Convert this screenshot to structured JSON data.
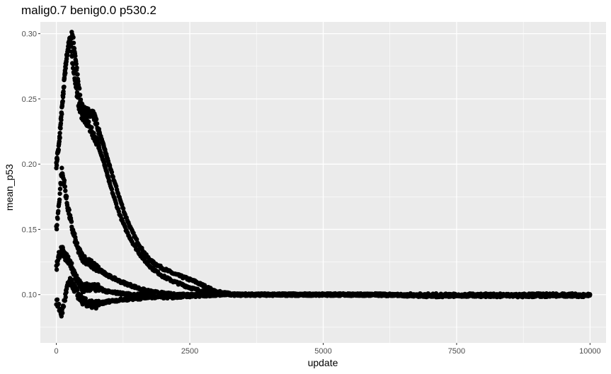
{
  "chart_data": {
    "type": "scatter",
    "title": "malig0.7 benig0.0 p530.2",
    "xlabel": "update",
    "ylabel": "mean_p53",
    "xlim": [
      -300,
      10300
    ],
    "ylim": [
      0.063,
      0.309
    ],
    "x_ticks": [
      0,
      2500,
      5000,
      7500,
      10000
    ],
    "x_tick_labels": [
      "0",
      "2500",
      "5000",
      "7500",
      "10000"
    ],
    "y_ticks": [
      0.1,
      0.15,
      0.2,
      0.25,
      0.3
    ],
    "y_tick_labels": [
      "0.10",
      "0.15",
      "0.20",
      "0.25",
      "0.30"
    ],
    "grid": true,
    "panel_color": "#ebebeb",
    "grid_color": "#ffffff",
    "point_color": "#000000",
    "series": [
      {
        "x": [
          0,
          50,
          100,
          150,
          200,
          250,
          300,
          350,
          400,
          450,
          500,
          600,
          700,
          800,
          900,
          1000,
          1100,
          1200,
          1300,
          1400,
          1500,
          1600,
          1700,
          1800,
          2000,
          2200,
          2400,
          2600,
          2800,
          3000,
          3500,
          4000,
          5000,
          6000,
          7000,
          8000,
          9000,
          10000
        ],
        "y": [
          0.2,
          0.215,
          0.24,
          0.265,
          0.285,
          0.295,
          0.3,
          0.285,
          0.265,
          0.25,
          0.241,
          0.24,
          0.238,
          0.225,
          0.212,
          0.198,
          0.185,
          0.172,
          0.16,
          0.15,
          0.142,
          0.135,
          0.129,
          0.125,
          0.12,
          0.116,
          0.113,
          0.11,
          0.106,
          0.102,
          0.1,
          0.1,
          0.1,
          0.1,
          0.099,
          0.099,
          0.1,
          0.099
        ]
      },
      {
        "x": [
          0,
          50,
          100,
          150,
          200,
          250,
          300,
          350,
          400,
          450,
          500,
          550,
          600,
          650,
          700,
          750,
          800,
          900,
          1000,
          1100,
          1200,
          1300,
          1400,
          1500,
          1600,
          1700,
          1800,
          1900,
          2000,
          2200,
          2400,
          2600,
          2800,
          3000,
          3500,
          4000,
          5000,
          6000,
          7000,
          8000,
          9000,
          10000
        ],
        "y": [
          0.2,
          0.215,
          0.24,
          0.265,
          0.285,
          0.295,
          0.28,
          0.265,
          0.25,
          0.24,
          0.236,
          0.233,
          0.23,
          0.226,
          0.222,
          0.218,
          0.213,
          0.2,
          0.185,
          0.172,
          0.16,
          0.15,
          0.142,
          0.135,
          0.129,
          0.124,
          0.12,
          0.117,
          0.114,
          0.11,
          0.107,
          0.104,
          0.102,
          0.101,
          0.1,
          0.1,
          0.1,
          0.1,
          0.1,
          0.1,
          0.1,
          0.1
        ]
      },
      {
        "x": [
          0,
          50,
          100,
          150,
          200,
          250,
          300,
          400,
          500,
          600,
          700,
          800,
          1000,
          1200,
          1400,
          1600,
          1800,
          2000,
          2200,
          2500,
          3000,
          3500,
          4000,
          5000,
          6000,
          7000,
          8000,
          9000,
          10000
        ],
        "y": [
          0.15,
          0.17,
          0.195,
          0.185,
          0.17,
          0.16,
          0.15,
          0.135,
          0.128,
          0.125,
          0.122,
          0.119,
          0.114,
          0.11,
          0.107,
          0.104,
          0.102,
          0.101,
          0.1,
          0.1,
          0.1,
          0.1,
          0.1,
          0.1,
          0.1,
          0.099,
          0.099,
          0.1,
          0.1
        ]
      },
      {
        "x": [
          0,
          50,
          100,
          150,
          200,
          250,
          300,
          350,
          400,
          500,
          600,
          700,
          800,
          900,
          1000,
          1200,
          1400,
          1600,
          1800,
          2000,
          2200,
          2400,
          2600,
          3000,
          3500,
          4000,
          5000,
          6000,
          7000,
          8000,
          9000,
          10000
        ],
        "y": [
          0.12,
          0.13,
          0.135,
          0.13,
          0.128,
          0.125,
          0.12,
          0.115,
          0.11,
          0.105,
          0.106,
          0.106,
          0.105,
          0.103,
          0.102,
          0.101,
          0.1,
          0.1,
          0.099,
          0.098,
          0.098,
          0.099,
          0.099,
          0.1,
          0.1,
          0.1,
          0.1,
          0.1,
          0.099,
          0.1,
          0.099,
          0.1
        ]
      },
      {
        "x": [
          0,
          50,
          100,
          150,
          200,
          250,
          300,
          400,
          500,
          600,
          700,
          800,
          900,
          1000,
          1200,
          1500,
          1800,
          2000,
          2500,
          3000,
          3500,
          4000,
          5000,
          6000,
          7000,
          8000,
          9000,
          10000
        ],
        "y": [
          0.095,
          0.09,
          0.085,
          0.095,
          0.105,
          0.11,
          0.108,
          0.1,
          0.095,
          0.093,
          0.092,
          0.093,
          0.094,
          0.095,
          0.096,
          0.097,
          0.098,
          0.099,
          0.1,
          0.1,
          0.1,
          0.1,
          0.1,
          0.1,
          0.099,
          0.099,
          0.099,
          0.099
        ]
      }
    ]
  }
}
